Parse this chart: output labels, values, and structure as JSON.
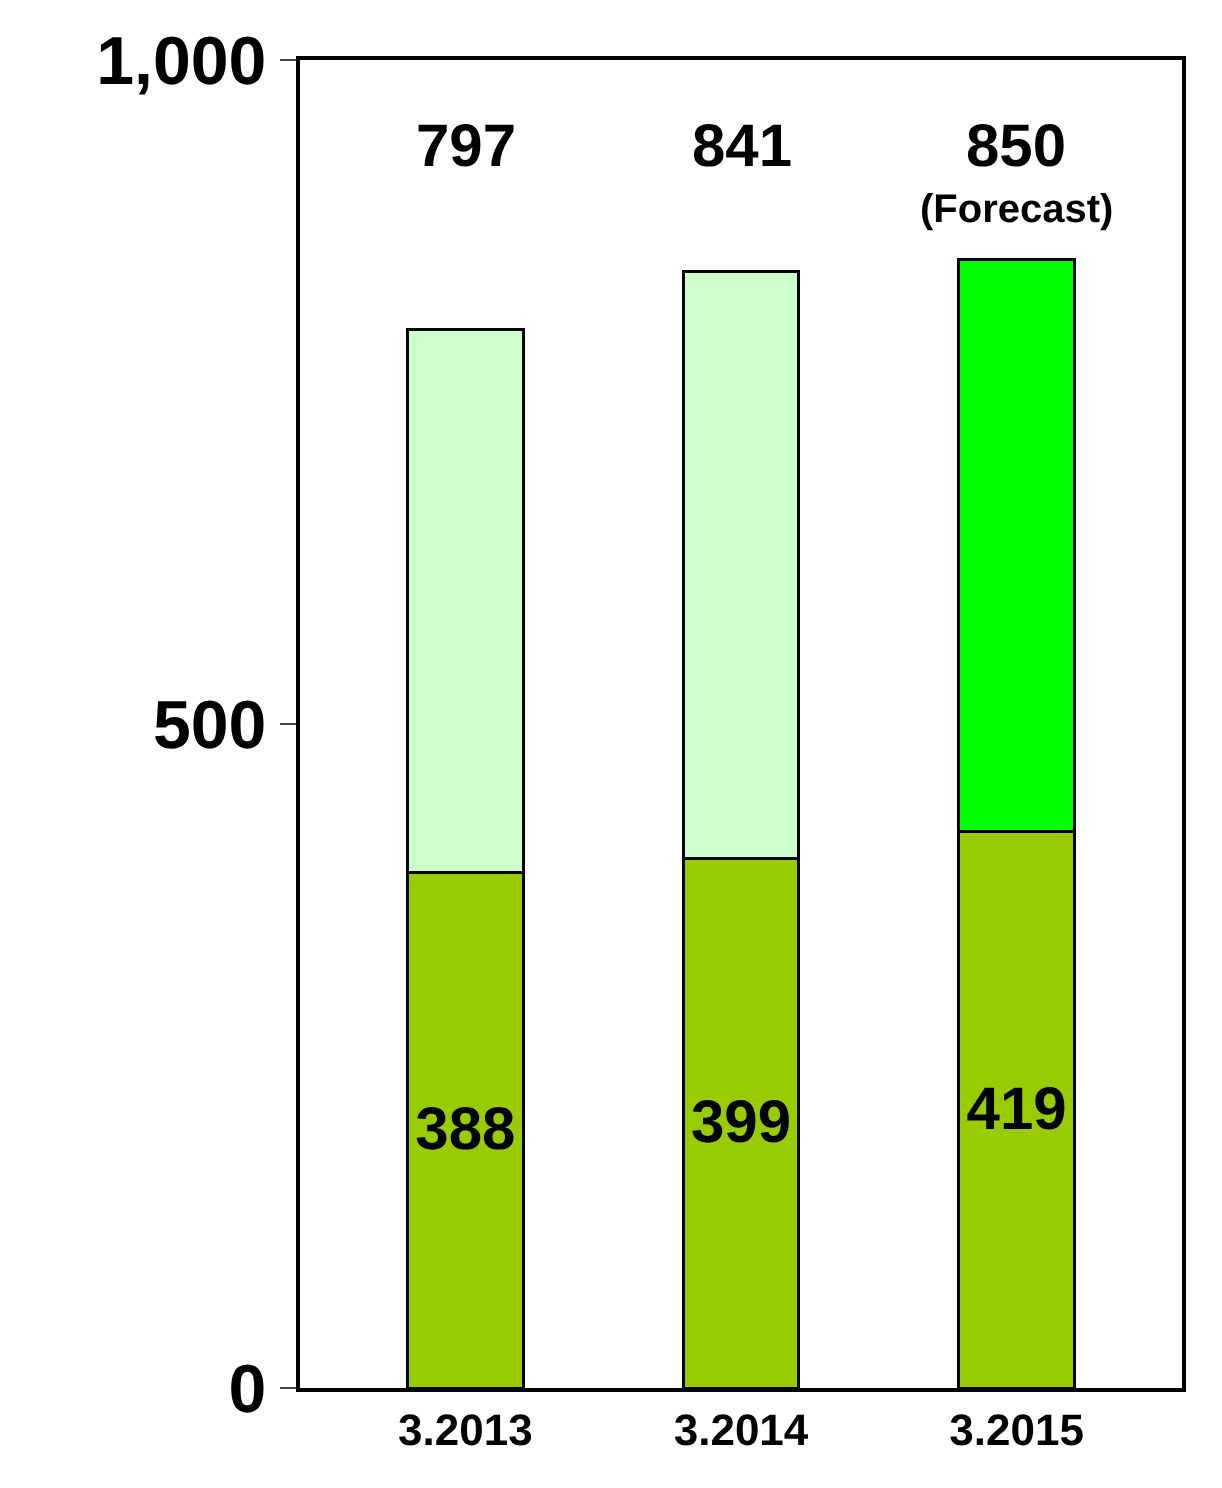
{
  "chart_data": {
    "type": "bar",
    "stacked": true,
    "categories": [
      "3.2013",
      "3.2014",
      "3.2015"
    ],
    "series": [
      {
        "color": "#99cc00",
        "values": [
          388,
          399,
          419
        ],
        "value_labels": [
          "388",
          "399",
          "419"
        ]
      },
      {
        "colors": [
          "#ccffcc",
          "#ccffcc",
          "#00ff00"
        ],
        "values": [
          409,
          442,
          431
        ]
      }
    ],
    "totals": [
      "797",
      "841",
      "850"
    ],
    "annotations": [
      {
        "text": "(Forecast)",
        "x": "3.2015",
        "y": 850
      }
    ],
    "ylim": [
      0,
      1000
    ],
    "yticks": [
      0,
      500,
      {
        "value": 1000,
        "label": "1,000"
      }
    ]
  }
}
